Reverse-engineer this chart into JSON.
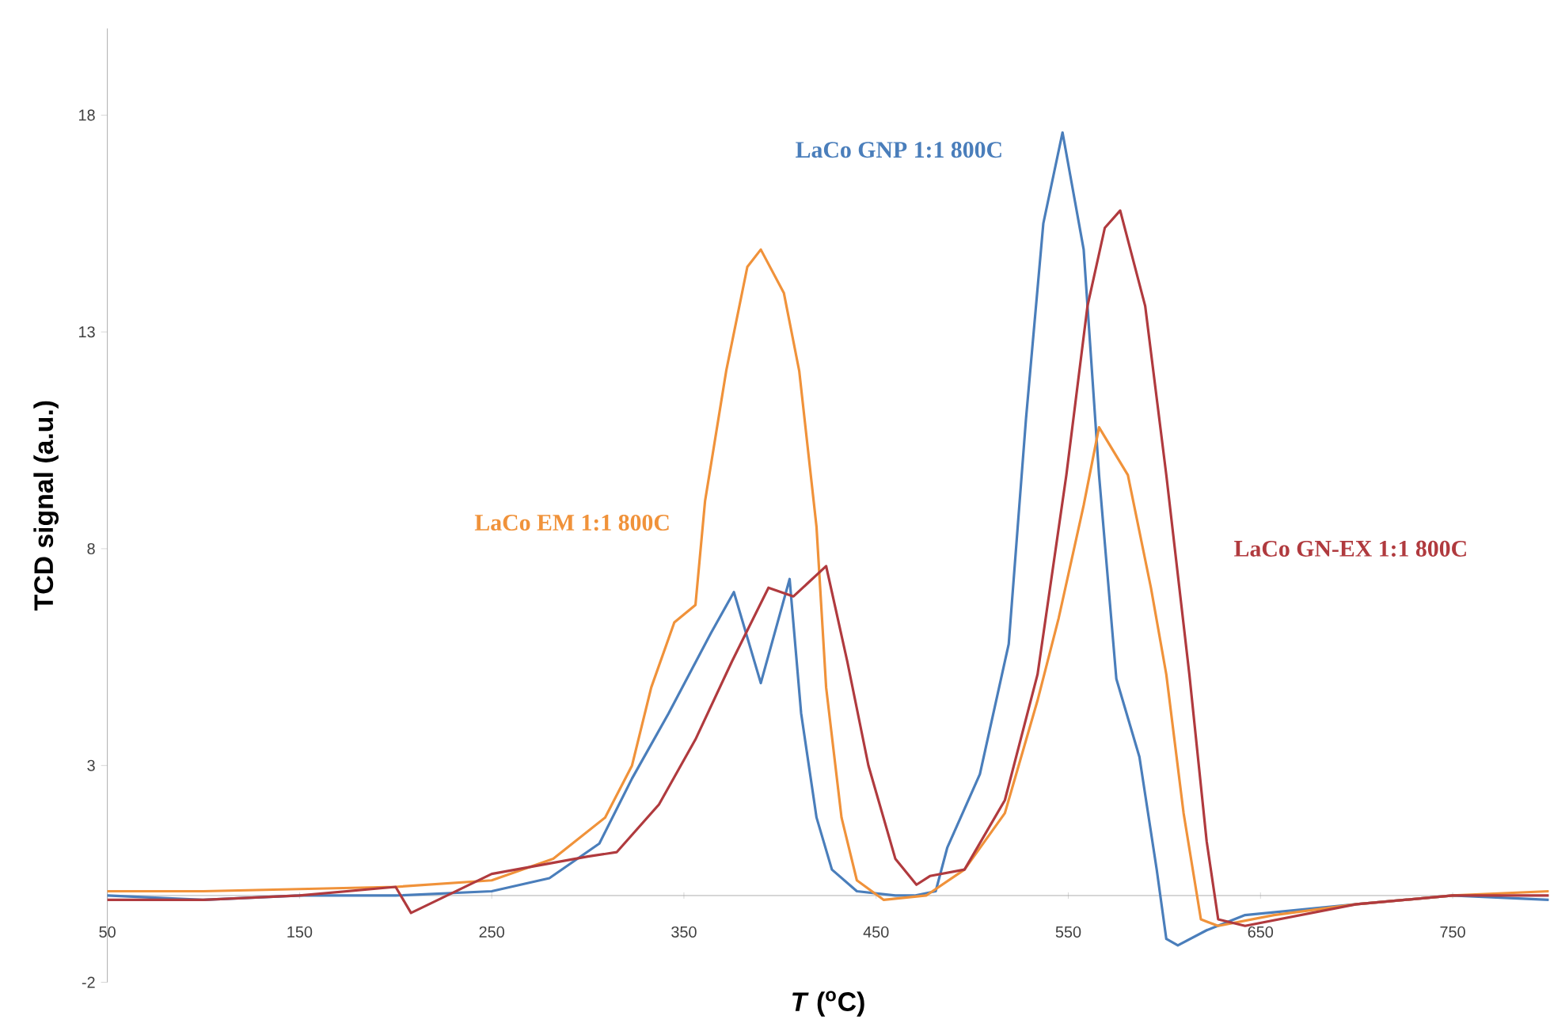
{
  "chart_data": {
    "type": "line",
    "xlabel": "*T* ($^{o}$C)",
    "ylabel": "TCD signal (a.u.)",
    "xlim": [
      50,
      800
    ],
    "ylim": [
      -2,
      20
    ],
    "xticks": [
      50,
      150,
      250,
      350,
      450,
      550,
      650,
      750
    ],
    "yticks": [
      -2,
      3,
      8,
      13,
      18
    ],
    "series": [
      {
        "name": "LaCo GNP 1:1 800C",
        "color": "#4a7ebb",
        "x": [
          50,
          100,
          150,
          200,
          250,
          280,
          306,
          323,
          342,
          364,
          376,
          390,
          405,
          411,
          419,
          427,
          440,
          460,
          470,
          481,
          487,
          504,
          519,
          528,
          537,
          547,
          558,
          566,
          575,
          587,
          596,
          601,
          607,
          622,
          642,
          700,
          750,
          800
        ],
        "values": [
          0,
          -0.1,
          0,
          0,
          0.1,
          0.4,
          1.2,
          2.7,
          4.2,
          6.05,
          7.0,
          4.9,
          7.3,
          4.2,
          1.8,
          0.6,
          0.1,
          0,
          0,
          0.1,
          1.1,
          2.8,
          5.8,
          11.0,
          15.5,
          17.6,
          14.9,
          9.7,
          5.0,
          3.2,
          0.6,
          -1.0,
          -1.15,
          -0.8,
          -0.45,
          -0.2,
          0,
          -0.1
        ]
      },
      {
        "name": "LaCo EM 1:1 800C",
        "color": "#f0923a",
        "x": [
          50,
          100,
          150,
          200,
          250,
          282,
          309,
          323,
          333,
          345,
          356,
          361,
          372,
          383,
          390,
          402,
          410,
          419,
          424,
          432,
          440,
          454,
          476,
          496,
          517,
          534,
          545,
          558,
          566,
          581,
          593,
          601,
          610,
          619,
          628,
          657,
          700,
          750,
          800
        ],
        "values": [
          0.1,
          0.1,
          0.15,
          0.2,
          0.35,
          0.85,
          1.8,
          3.0,
          4.8,
          6.3,
          6.7,
          9.1,
          12.1,
          14.5,
          14.9,
          13.9,
          12.1,
          8.5,
          4.8,
          1.8,
          0.35,
          -0.1,
          0,
          0.6,
          1.9,
          4.5,
          6.4,
          9.0,
          10.8,
          9.7,
          7.1,
          5.1,
          1.9,
          -0.55,
          -0.7,
          -0.45,
          -0.2,
          0,
          0.1
        ]
      },
      {
        "name": "LaCo GN-EX 1:1 800C",
        "color": "#b03a3e",
        "x": [
          50,
          100,
          150,
          200,
          208,
          250,
          300,
          315,
          337,
          356,
          375,
          394,
          407,
          424,
          435,
          446,
          460,
          471,
          478,
          496,
          517,
          534,
          549,
          560,
          569,
          577,
          590,
          601,
          613,
          622,
          628,
          642,
          700,
          750,
          800
        ],
        "values": [
          -0.1,
          -0.1,
          0,
          0.2,
          -0.4,
          0.5,
          0.9,
          1.0,
          2.1,
          3.6,
          5.4,
          7.1,
          6.9,
          7.6,
          5.4,
          3.0,
          0.85,
          0.25,
          0.45,
          0.6,
          2.2,
          5.1,
          9.7,
          13.6,
          15.4,
          15.8,
          13.6,
          9.7,
          5.1,
          1.25,
          -0.55,
          -0.7,
          -0.2,
          0,
          0
        ]
      }
    ]
  }
}
